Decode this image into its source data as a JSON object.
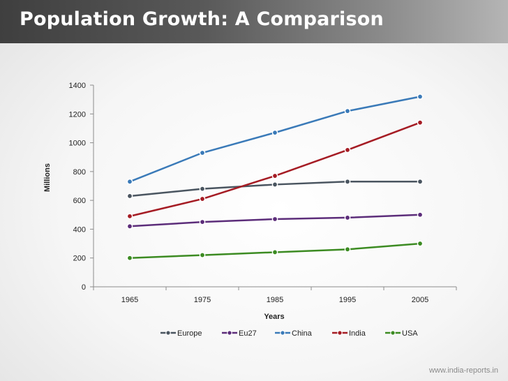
{
  "page": {
    "title": "Population Growth: A Comparison",
    "footer": "www.india-reports.in"
  },
  "chart_data": {
    "type": "line",
    "title": "",
    "xlabel": "Years",
    "ylabel": "Millions",
    "categories": [
      "1965",
      "1975",
      "1985",
      "1995",
      "2005"
    ],
    "ylim": [
      0,
      1400
    ],
    "yticks": [
      0,
      200,
      400,
      600,
      800,
      1000,
      1200,
      1400
    ],
    "grid": false,
    "legend_position": "bottom",
    "series": [
      {
        "name": "Europe",
        "color": "#4a5560",
        "values": [
          630,
          680,
          710,
          730,
          730
        ]
      },
      {
        "name": "Eu27",
        "color": "#5c2d7a",
        "values": [
          420,
          450,
          470,
          480,
          500
        ]
      },
      {
        "name": "China",
        "color": "#3a7ab8",
        "values": [
          730,
          930,
          1070,
          1220,
          1320
        ]
      },
      {
        "name": "India",
        "color": "#a51c24",
        "values": [
          490,
          610,
          770,
          950,
          1140
        ]
      },
      {
        "name": "USA",
        "color": "#3c8b22",
        "values": [
          200,
          220,
          240,
          260,
          300
        ]
      }
    ]
  }
}
